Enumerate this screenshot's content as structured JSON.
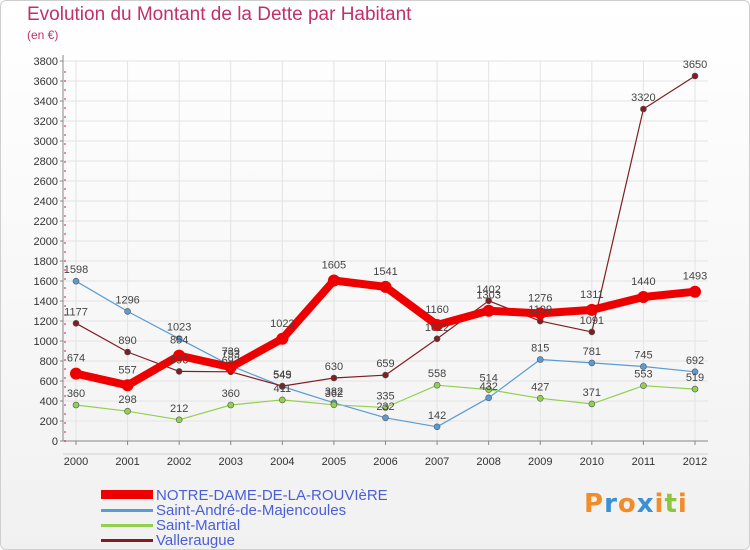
{
  "header": {
    "title": "Evolution du Montant de la Dette par Habitant",
    "subtitle": "(en €)"
  },
  "logo": {
    "letters": [
      "P",
      "r",
      "o",
      "x",
      "i",
      "t",
      "i"
    ],
    "colors": [
      "#f28c28",
      "#3a8fd6",
      "#f28c28",
      "#3a8fd6",
      "#f28c28",
      "#8cc63f",
      "#f28c28"
    ]
  },
  "chart_data": {
    "type": "line",
    "title": "Evolution du Montant de la Dette par Habitant",
    "subtitle": "(en €)",
    "xlabel": "",
    "ylabel": "",
    "x": [
      "2000",
      "2001",
      "2002",
      "2003",
      "2004",
      "2005",
      "2006",
      "2007",
      "2008",
      "2009",
      "2010",
      "2011",
      "2012"
    ],
    "ylim": [
      0,
      3800
    ],
    "yticks": [
      0,
      200,
      400,
      600,
      800,
      1000,
      1200,
      1400,
      1600,
      1800,
      2000,
      2200,
      2400,
      2600,
      2800,
      3000,
      3200,
      3400,
      3600,
      3800
    ],
    "grid": true,
    "legend": "bottom-left",
    "series": [
      {
        "name": "Saint-André-de-Majencoules",
        "color": "#5b9bd5",
        "values": [
          1598,
          1296,
          1023,
          753,
          545,
          382,
          232,
          142,
          432,
          815,
          781,
          745,
          692
        ],
        "labels": [
          "1598",
          "1296",
          "1023",
          "753",
          "545",
          "382",
          "232",
          "142",
          "432",
          "815",
          "781",
          "745",
          "692"
        ]
      },
      {
        "name": "Saint-Martial",
        "color": "#92d050",
        "values": [
          360,
          298,
          212,
          360,
          411,
          362,
          335,
          558,
          514,
          427,
          371,
          553,
          519
        ],
        "labels": [
          "360",
          "298",
          "212",
          "360",
          "411",
          "362",
          "335",
          "558",
          "514",
          "427",
          "371",
          "553",
          "519"
        ]
      },
      {
        "name": "Valleraugue",
        "color": "#7f1f23",
        "values": [
          1177,
          890,
          696,
          692,
          549,
          630,
          659,
          1022,
          1402,
          1199,
          1091,
          3320,
          3650
        ],
        "labels": [
          "1177",
          "890",
          "696",
          "692",
          "549",
          "630",
          "659",
          "1022",
          "1402",
          "1199",
          "1091",
          "3320",
          "3650"
        ]
      },
      {
        "name": "NOTRE-DAME-DE-LA-ROUVIèRE",
        "color": "#ee0000",
        "values": [
          674,
          557,
          854,
          739,
          1022,
          1605,
          1541,
          1160,
          1303,
          1276,
          1311,
          1440,
          1493
        ],
        "labels": [
          "674",
          "557",
          "854",
          "739",
          "1022",
          "1605",
          "1541",
          "1160",
          "1303",
          "1276",
          "1311",
          "1440",
          "1493"
        ]
      }
    ],
    "legend_order": [
      "NOTRE-DAME-DE-LA-ROUVIèRE",
      "Saint-André-de-Majencoules",
      "Saint-Martial",
      "Valleraugue"
    ],
    "legend_label_colors": [
      "#4a5fd6",
      "#4a5fd6",
      "#4a5fd6",
      "#4a5fd6"
    ]
  }
}
